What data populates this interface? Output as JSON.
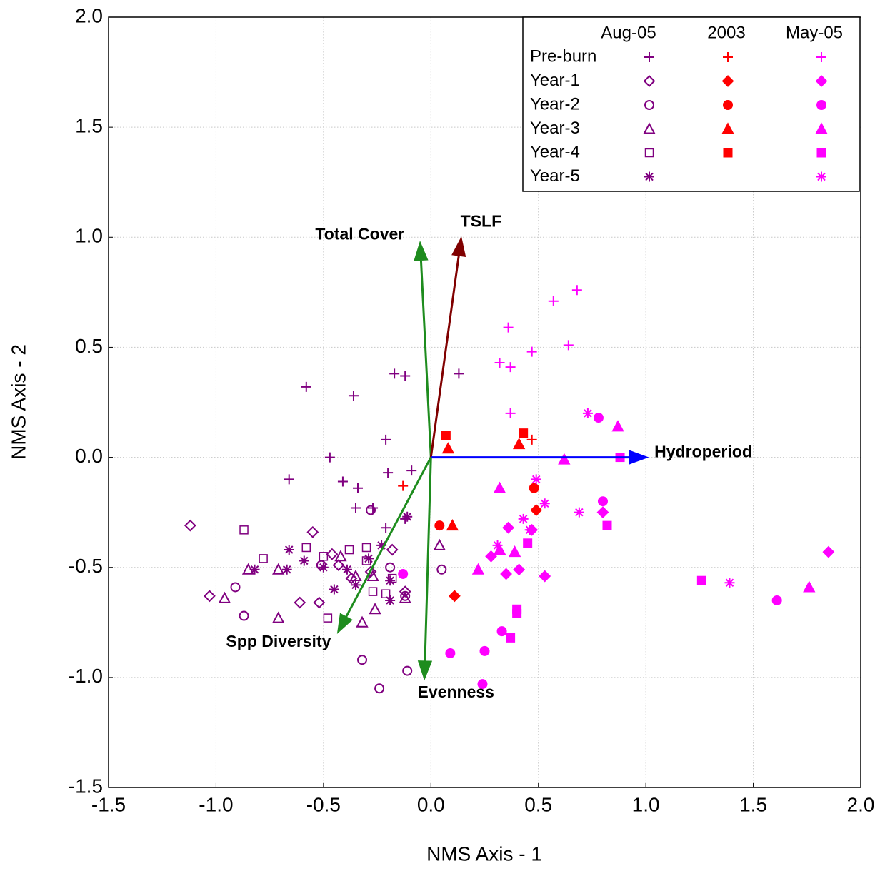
{
  "chart_data": {
    "type": "scatter",
    "xlabel": "NMS Axis - 1",
    "ylabel": "NMS Axis - 2",
    "xlim": [
      -1.5,
      2.0
    ],
    "ylim": [
      -1.5,
      2.0
    ],
    "xticks": [
      -1.5,
      {
        "value": -1.0,
        "label": "-1.0"
      },
      -0.5,
      {
        "value": 0,
        "label": "0.0"
      },
      0.5,
      {
        "value": 1.0,
        "label": "1.0"
      },
      1.5,
      {
        "value": 2.0,
        "label": "2.0"
      }
    ],
    "yticks": [
      -1.5,
      {
        "value": -1.0,
        "label": "-1.0"
      },
      -0.5,
      {
        "value": 0,
        "label": "0.0"
      },
      0.5,
      {
        "value": 1.0,
        "label": "1.0"
      },
      1.5,
      {
        "value": 2.0,
        "label": "2.0"
      }
    ],
    "grid": true,
    "legend": "upper right",
    "row_labels": [
      "Pre-burn",
      "Year-1",
      "Year-2",
      "Year-3",
      "Year-4",
      "Year-5"
    ],
    "groups": [
      {
        "name": "Aug-05",
        "color": "#800080",
        "filled": false,
        "series": [
          {
            "marker": "plus",
            "x": [
              -0.58,
              -0.36,
              -0.17,
              -0.12,
              0.13,
              -0.21,
              -0.47,
              -0.66,
              -0.41,
              -0.34,
              -0.2,
              -0.09,
              -0.35,
              -0.27,
              -0.21,
              -0.12
            ],
            "y": [
              0.32,
              0.28,
              0.38,
              0.37,
              0.38,
              0.08,
              0.0,
              -0.1,
              -0.11,
              -0.14,
              -0.07,
              -0.06,
              -0.23,
              -0.23,
              -0.32,
              -0.28
            ]
          },
          {
            "marker": "diamond",
            "x": [
              -1.12,
              -1.03,
              -0.55,
              -0.46,
              -0.43,
              -0.52,
              -0.61,
              -0.37,
              -0.28,
              -0.18,
              -0.12
            ],
            "y": [
              -0.31,
              -0.63,
              -0.34,
              -0.44,
              -0.49,
              -0.66,
              -0.66,
              -0.55,
              -0.52,
              -0.42,
              -0.61
            ]
          },
          {
            "marker": "circle",
            "x": [
              -0.28,
              -0.91,
              -0.87,
              -0.32,
              -0.24,
              -0.11,
              0.05,
              -0.51,
              -0.19,
              -0.12
            ],
            "y": [
              -0.24,
              -0.59,
              -0.72,
              -0.92,
              -1.05,
              -0.97,
              -0.51,
              -0.49,
              -0.5,
              -0.63
            ]
          },
          {
            "marker": "triangle",
            "x": [
              -0.85,
              -0.96,
              -0.71,
              -0.71,
              -0.42,
              -0.35,
              -0.32,
              -0.27,
              -0.26,
              -0.12,
              0.04
            ],
            "y": [
              -0.51,
              -0.64,
              -0.73,
              -0.51,
              -0.45,
              -0.54,
              -0.75,
              -0.54,
              -0.69,
              -0.64,
              -0.4
            ]
          },
          {
            "marker": "square",
            "x": [
              -0.87,
              -0.78,
              -0.58,
              -0.5,
              -0.48,
              -0.38,
              -0.3,
              -0.27,
              -0.21,
              -0.18,
              -0.3
            ],
            "y": [
              -0.33,
              -0.46,
              -0.41,
              -0.45,
              -0.73,
              -0.42,
              -0.47,
              -0.61,
              -0.62,
              -0.55,
              -0.41
            ]
          },
          {
            "marker": "asterisk",
            "x": [
              -0.66,
              -0.59,
              -0.82,
              -0.67,
              -0.45,
              -0.5,
              -0.39,
              -0.29,
              -0.23,
              -0.19,
              -0.19,
              -0.11,
              -0.35
            ],
            "y": [
              -0.42,
              -0.47,
              -0.51,
              -0.51,
              -0.6,
              -0.5,
              -0.51,
              -0.46,
              -0.4,
              -0.56,
              -0.65,
              -0.27,
              -0.58
            ]
          }
        ]
      },
      {
        "name": "2003",
        "color": "#ff0000",
        "filled": true,
        "series": [
          {
            "marker": "plus",
            "x": [
              -0.13,
              0.47
            ],
            "y": [
              -0.13,
              0.08
            ]
          },
          {
            "marker": "diamond",
            "x": [
              0.11,
              0.49
            ],
            "y": [
              -0.63,
              -0.24
            ]
          },
          {
            "marker": "circle",
            "x": [
              0.04,
              0.48
            ],
            "y": [
              -0.31,
              -0.14
            ]
          },
          {
            "marker": "triangle",
            "x": [
              0.1,
              0.08,
              0.41
            ],
            "y": [
              -0.31,
              0.04,
              0.06
            ]
          },
          {
            "marker": "square",
            "x": [
              0.07,
              0.43
            ],
            "y": [
              0.1,
              0.11
            ]
          }
        ]
      },
      {
        "name": "May-05",
        "color": "#ff00ff",
        "filled": true,
        "series": [
          {
            "marker": "plus",
            "x": [
              0.68,
              0.57,
              0.36,
              0.32,
              0.37,
              0.47,
              0.64,
              0.37
            ],
            "y": [
              0.76,
              0.71,
              0.59,
              0.43,
              0.41,
              0.48,
              0.51,
              0.2
            ]
          },
          {
            "marker": "diamond",
            "x": [
              1.85,
              0.8,
              0.53,
              0.41,
              0.28,
              0.35,
              0.47,
              0.36
            ],
            "y": [
              -0.43,
              -0.25,
              -0.54,
              -0.51,
              -0.45,
              -0.53,
              -0.33,
              -0.32
            ]
          },
          {
            "marker": "circle",
            "x": [
              0.78,
              0.8,
              1.61,
              0.09,
              0.25,
              0.33,
              0.24,
              -0.13
            ],
            "y": [
              0.18,
              -0.2,
              -0.65,
              -0.89,
              -0.88,
              -0.79,
              -1.03,
              -0.53
            ]
          },
          {
            "marker": "triangle",
            "x": [
              0.87,
              0.62,
              0.32,
              0.22,
              0.32,
              0.39,
              1.76
            ],
            "y": [
              0.14,
              -0.01,
              -0.14,
              -0.51,
              -0.42,
              -0.43,
              -0.59
            ]
          },
          {
            "marker": "square",
            "x": [
              0.88,
              0.82,
              1.26,
              0.45,
              0.4,
              0.4,
              0.37
            ],
            "y": [
              0.0,
              -0.31,
              -0.56,
              -0.39,
              -0.69,
              -0.71,
              -0.82
            ]
          },
          {
            "marker": "asterisk",
            "x": [
              0.73,
              0.49,
              0.53,
              0.69,
              0.43,
              0.31,
              1.39,
              0.46
            ],
            "y": [
              0.2,
              -0.1,
              -0.21,
              -0.25,
              -0.28,
              -0.4,
              -0.57,
              -0.33
            ]
          }
        ]
      }
    ],
    "vectors": [
      {
        "name": "Total Cover",
        "color": "#1e8c1e",
        "x": -0.05,
        "y": 0.97
      },
      {
        "name": "TSLF",
        "color": "#800000",
        "x": 0.14,
        "y": 0.99
      },
      {
        "name": "Hydroperiod",
        "color": "#0000ff",
        "x": 1.0,
        "y": 0.0
      },
      {
        "name": "Spp Diversity",
        "color": "#1e8c1e",
        "x": -0.43,
        "y": -0.79
      },
      {
        "name": "Evenness",
        "color": "#1e8c1e",
        "x": -0.03,
        "y": -1.0
      }
    ]
  }
}
